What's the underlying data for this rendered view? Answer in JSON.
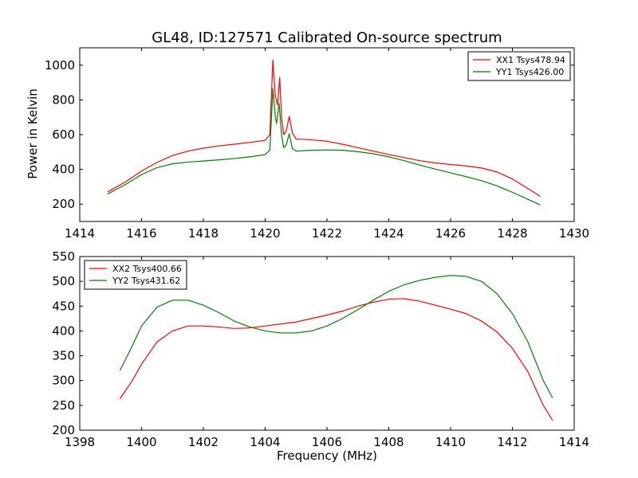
{
  "figure": {
    "title": "GL48, ID:127571 Calibrated On-source spectrum",
    "ylabel": "Power in Kelvin",
    "xlabel": "Frequency (MHz)"
  },
  "chart_data": [
    {
      "type": "line",
      "xlim": [
        1414,
        1430
      ],
      "ylim": [
        100,
        1100
      ],
      "xticks": [
        1414,
        1416,
        1418,
        1420,
        1422,
        1424,
        1426,
        1428,
        1430
      ],
      "yticks": [
        200,
        400,
        600,
        800,
        1000
      ],
      "grid": false,
      "legend_position": "top-right",
      "series": [
        {
          "name": "XX1 Tsys478.94",
          "color": "#ff0000",
          "points": [
            [
              1414.9,
              270
            ],
            [
              1415.5,
              330
            ],
            [
              1416.0,
              390
            ],
            [
              1416.5,
              440
            ],
            [
              1417.0,
              480
            ],
            [
              1417.5,
              505
            ],
            [
              1418.0,
              522
            ],
            [
              1418.5,
              535
            ],
            [
              1419.0,
              545
            ],
            [
              1419.5,
              555
            ],
            [
              1420.0,
              567
            ],
            [
              1420.15,
              600
            ],
            [
              1420.25,
              1030
            ],
            [
              1420.33,
              820
            ],
            [
              1420.4,
              770
            ],
            [
              1420.47,
              930
            ],
            [
              1420.53,
              700
            ],
            [
              1420.6,
              600
            ],
            [
              1420.68,
              620
            ],
            [
              1420.78,
              705
            ],
            [
              1420.88,
              610
            ],
            [
              1421.0,
              575
            ],
            [
              1421.5,
              570
            ],
            [
              1422.0,
              562
            ],
            [
              1422.5,
              545
            ],
            [
              1423.0,
              525
            ],
            [
              1423.5,
              505
            ],
            [
              1424.0,
              485
            ],
            [
              1424.5,
              468
            ],
            [
              1425.0,
              450
            ],
            [
              1425.5,
              437
            ],
            [
              1426.0,
              428
            ],
            [
              1426.5,
              420
            ],
            [
              1427.0,
              408
            ],
            [
              1427.5,
              385
            ],
            [
              1428.0,
              345
            ],
            [
              1428.5,
              290
            ],
            [
              1428.9,
              245
            ]
          ]
        },
        {
          "name": "YY1 Tsys426.00",
          "color": "#008000",
          "points": [
            [
              1414.9,
              258
            ],
            [
              1415.5,
              315
            ],
            [
              1416.0,
              370
            ],
            [
              1416.5,
              410
            ],
            [
              1417.0,
              432
            ],
            [
              1417.5,
              442
            ],
            [
              1418.0,
              448
            ],
            [
              1418.5,
              455
            ],
            [
              1419.0,
              462
            ],
            [
              1419.5,
              472
            ],
            [
              1420.0,
              485
            ],
            [
              1420.15,
              510
            ],
            [
              1420.25,
              865
            ],
            [
              1420.33,
              700
            ],
            [
              1420.37,
              665
            ],
            [
              1420.45,
              780
            ],
            [
              1420.53,
              600
            ],
            [
              1420.6,
              525
            ],
            [
              1420.68,
              540
            ],
            [
              1420.78,
              605
            ],
            [
              1420.88,
              520
            ],
            [
              1421.0,
              505
            ],
            [
              1421.5,
              510
            ],
            [
              1422.0,
              512
            ],
            [
              1422.5,
              510
            ],
            [
              1423.0,
              502
            ],
            [
              1423.5,
              490
            ],
            [
              1424.0,
              472
            ],
            [
              1424.5,
              450
            ],
            [
              1425.0,
              425
            ],
            [
              1425.5,
              402
            ],
            [
              1426.0,
              380
            ],
            [
              1426.5,
              358
            ],
            [
              1427.0,
              335
            ],
            [
              1427.5,
              305
            ],
            [
              1428.0,
              268
            ],
            [
              1428.5,
              228
            ],
            [
              1428.9,
              195
            ]
          ]
        }
      ]
    },
    {
      "type": "line",
      "xlim": [
        1398,
        1414
      ],
      "ylim": [
        200,
        550
      ],
      "xticks": [
        1398,
        1400,
        1402,
        1404,
        1406,
        1408,
        1410,
        1412,
        1414
      ],
      "yticks": [
        200,
        250,
        300,
        350,
        400,
        450,
        500,
        550
      ],
      "grid": false,
      "legend_position": "top-left",
      "series": [
        {
          "name": "XX2 Tsys400.66",
          "color": "#ff0000",
          "points": [
            [
              1399.3,
              263
            ],
            [
              1399.7,
              300
            ],
            [
              1400.0,
              333
            ],
            [
              1400.5,
              378
            ],
            [
              1401.0,
              400
            ],
            [
              1401.5,
              410
            ],
            [
              1402.0,
              410
            ],
            [
              1402.5,
              408
            ],
            [
              1403.0,
              405
            ],
            [
              1403.5,
              406
            ],
            [
              1404.0,
              410
            ],
            [
              1404.5,
              414
            ],
            [
              1405.0,
              418
            ],
            [
              1405.5,
              425
            ],
            [
              1406.0,
              432
            ],
            [
              1406.5,
              440
            ],
            [
              1407.0,
              450
            ],
            [
              1407.5,
              458
            ],
            [
              1408.0,
              464
            ],
            [
              1408.5,
              465
            ],
            [
              1409.0,
              460
            ],
            [
              1409.5,
              452
            ],
            [
              1410.0,
              444
            ],
            [
              1410.5,
              435
            ],
            [
              1411.0,
              420
            ],
            [
              1411.5,
              398
            ],
            [
              1412.0,
              365
            ],
            [
              1412.5,
              318
            ],
            [
              1413.0,
              250
            ],
            [
              1413.3,
              220
            ]
          ]
        },
        {
          "name": "YY2 Tsys431.62",
          "color": "#008000",
          "points": [
            [
              1399.3,
              320
            ],
            [
              1399.7,
              370
            ],
            [
              1400.0,
              410
            ],
            [
              1400.5,
              448
            ],
            [
              1401.0,
              462
            ],
            [
              1401.5,
              462
            ],
            [
              1402.0,
              452
            ],
            [
              1402.5,
              437
            ],
            [
              1403.0,
              420
            ],
            [
              1403.5,
              408
            ],
            [
              1404.0,
              400
            ],
            [
              1404.5,
              396
            ],
            [
              1405.0,
              396
            ],
            [
              1405.5,
              400
            ],
            [
              1406.0,
              410
            ],
            [
              1406.5,
              425
            ],
            [
              1407.0,
              443
            ],
            [
              1407.5,
              462
            ],
            [
              1408.0,
              480
            ],
            [
              1408.5,
              493
            ],
            [
              1409.0,
              502
            ],
            [
              1409.5,
              508
            ],
            [
              1410.0,
              512
            ],
            [
              1410.5,
              510
            ],
            [
              1411.0,
              500
            ],
            [
              1411.5,
              475
            ],
            [
              1412.0,
              435
            ],
            [
              1412.5,
              378
            ],
            [
              1413.0,
              300
            ],
            [
              1413.3,
              265
            ]
          ]
        }
      ]
    }
  ]
}
